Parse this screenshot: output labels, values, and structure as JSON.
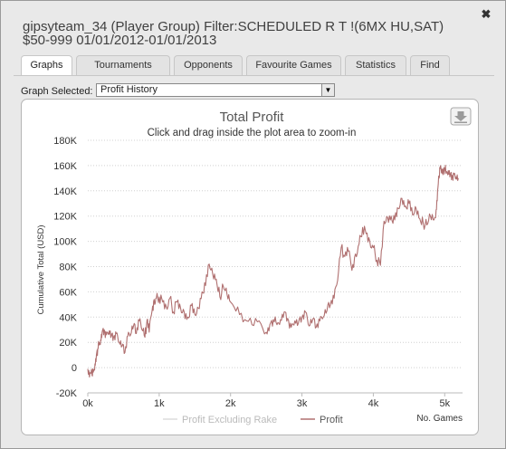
{
  "window": {
    "title": "gipsyteam_34 (Player Group) Filter:SCHEDULED R T !(6MX HU,SAT)\n$50-999 01/01/2012-01/01/2013",
    "close_glyph": "✖"
  },
  "tabs": [
    {
      "label": "Graphs",
      "active": true
    },
    {
      "label": "Tournaments",
      "active": false
    },
    {
      "label": "Opponents",
      "active": false
    },
    {
      "label": "Favourite Games",
      "active": false
    },
    {
      "label": "Statistics",
      "active": false
    },
    {
      "label": "Find",
      "active": false
    }
  ],
  "graph_selector": {
    "label": "Graph Selected:",
    "value": "Profit History"
  },
  "export_icon": "download-icon",
  "chart_data": {
    "type": "line",
    "title": "Total Profit",
    "subtitle": "Click and drag inside the plot area to zoom-in",
    "xlabel": "No. Games",
    "ylabel": "Cumulative Total (USD)",
    "xlim": [
      0,
      5250
    ],
    "ylim": [
      -20000,
      180000
    ],
    "x_ticks": [
      0,
      1000,
      2000,
      3000,
      4000,
      5000
    ],
    "x_tick_labels": [
      "0k",
      "1k",
      "2k",
      "3k",
      "4k",
      "5k"
    ],
    "y_ticks": [
      -20000,
      0,
      20000,
      40000,
      60000,
      80000,
      100000,
      120000,
      140000,
      160000,
      180000
    ],
    "y_tick_labels": [
      "-20K",
      "0",
      "20K",
      "40K",
      "60K",
      "80K",
      "100K",
      "120K",
      "140K",
      "160K",
      "180K"
    ],
    "grid": "horizontal-dotted",
    "legend_position": "bottom-center",
    "colors": {
      "profit": "#b07070",
      "excluding_rake": "#dcdcdc",
      "grid": "#d0d0d0",
      "title": "#555555"
    },
    "series": [
      {
        "name": "Profit Excluding Rake",
        "x": [],
        "y": []
      },
      {
        "name": "Profit",
        "x": [
          0,
          30,
          60,
          80,
          100,
          120,
          140,
          160,
          180,
          200,
          230,
          260,
          300,
          330,
          360,
          400,
          440,
          480,
          520,
          560,
          600,
          640,
          680,
          720,
          760,
          800,
          830,
          860,
          900,
          930,
          960,
          1000,
          1050,
          1100,
          1150,
          1200,
          1250,
          1300,
          1350,
          1400,
          1450,
          1500,
          1550,
          1600,
          1650,
          1700,
          1750,
          1800,
          1850,
          1900,
          1950,
          2000,
          2100,
          2200,
          2300,
          2400,
          2500,
          2550,
          2600,
          2650,
          2700,
          2750,
          2800,
          2850,
          2900,
          2950,
          3000,
          3050,
          3100,
          3150,
          3200,
          3250,
          3300,
          3350,
          3400,
          3450,
          3500,
          3550,
          3600,
          3650,
          3700,
          3750,
          3800,
          3850,
          3900,
          3950,
          4000,
          4050,
          4100,
          4150,
          4200,
          4250,
          4300,
          4350,
          4400,
          4450,
          4500,
          4550,
          4600,
          4650,
          4700,
          4750,
          4800,
          4850,
          4880,
          4900,
          4920,
          4940,
          4960,
          4980,
          5000,
          5020,
          5050,
          5080,
          5100,
          5130,
          5160,
          5190
        ],
        "y": [
          -1000,
          -4000,
          -6000,
          -3000,
          3000,
          10000,
          15000,
          18000,
          22000,
          28000,
          30000,
          26000,
          29000,
          25000,
          24000,
          27000,
          20000,
          17000,
          12000,
          25000,
          26000,
          33000,
          27000,
          37000,
          30000,
          24000,
          38000,
          28000,
          45000,
          54000,
          55000,
          56000,
          52000,
          48000,
          55000,
          44000,
          52000,
          47000,
          44000,
          40000,
          49000,
          42000,
          47000,
          60000,
          65000,
          82000,
          74000,
          70000,
          56000,
          64000,
          58000,
          52000,
          48000,
          38000,
          34000,
          37000,
          28000,
          34000,
          38000,
          34000,
          38000,
          44000,
          39000,
          32000,
          37000,
          35000,
          40000,
          44000,
          33000,
          38000,
          32000,
          37000,
          40000,
          45000,
          50000,
          55000,
          69000,
          95000,
          88000,
          92000,
          77000,
          90000,
          98000,
          111000,
          106000,
          100000,
          95000,
          85000,
          81000,
          116000,
          119000,
          120000,
          117000,
          126000,
          134000,
          128000,
          130000,
          121000,
          126000,
          118000,
          114000,
          113000,
          120000,
          117000,
          125000,
          140000,
          150000,
          160000,
          157000,
          156000,
          158000,
          154000,
          156000,
          153000,
          152000,
          153000,
          151000,
          150000
        ]
      }
    ]
  }
}
